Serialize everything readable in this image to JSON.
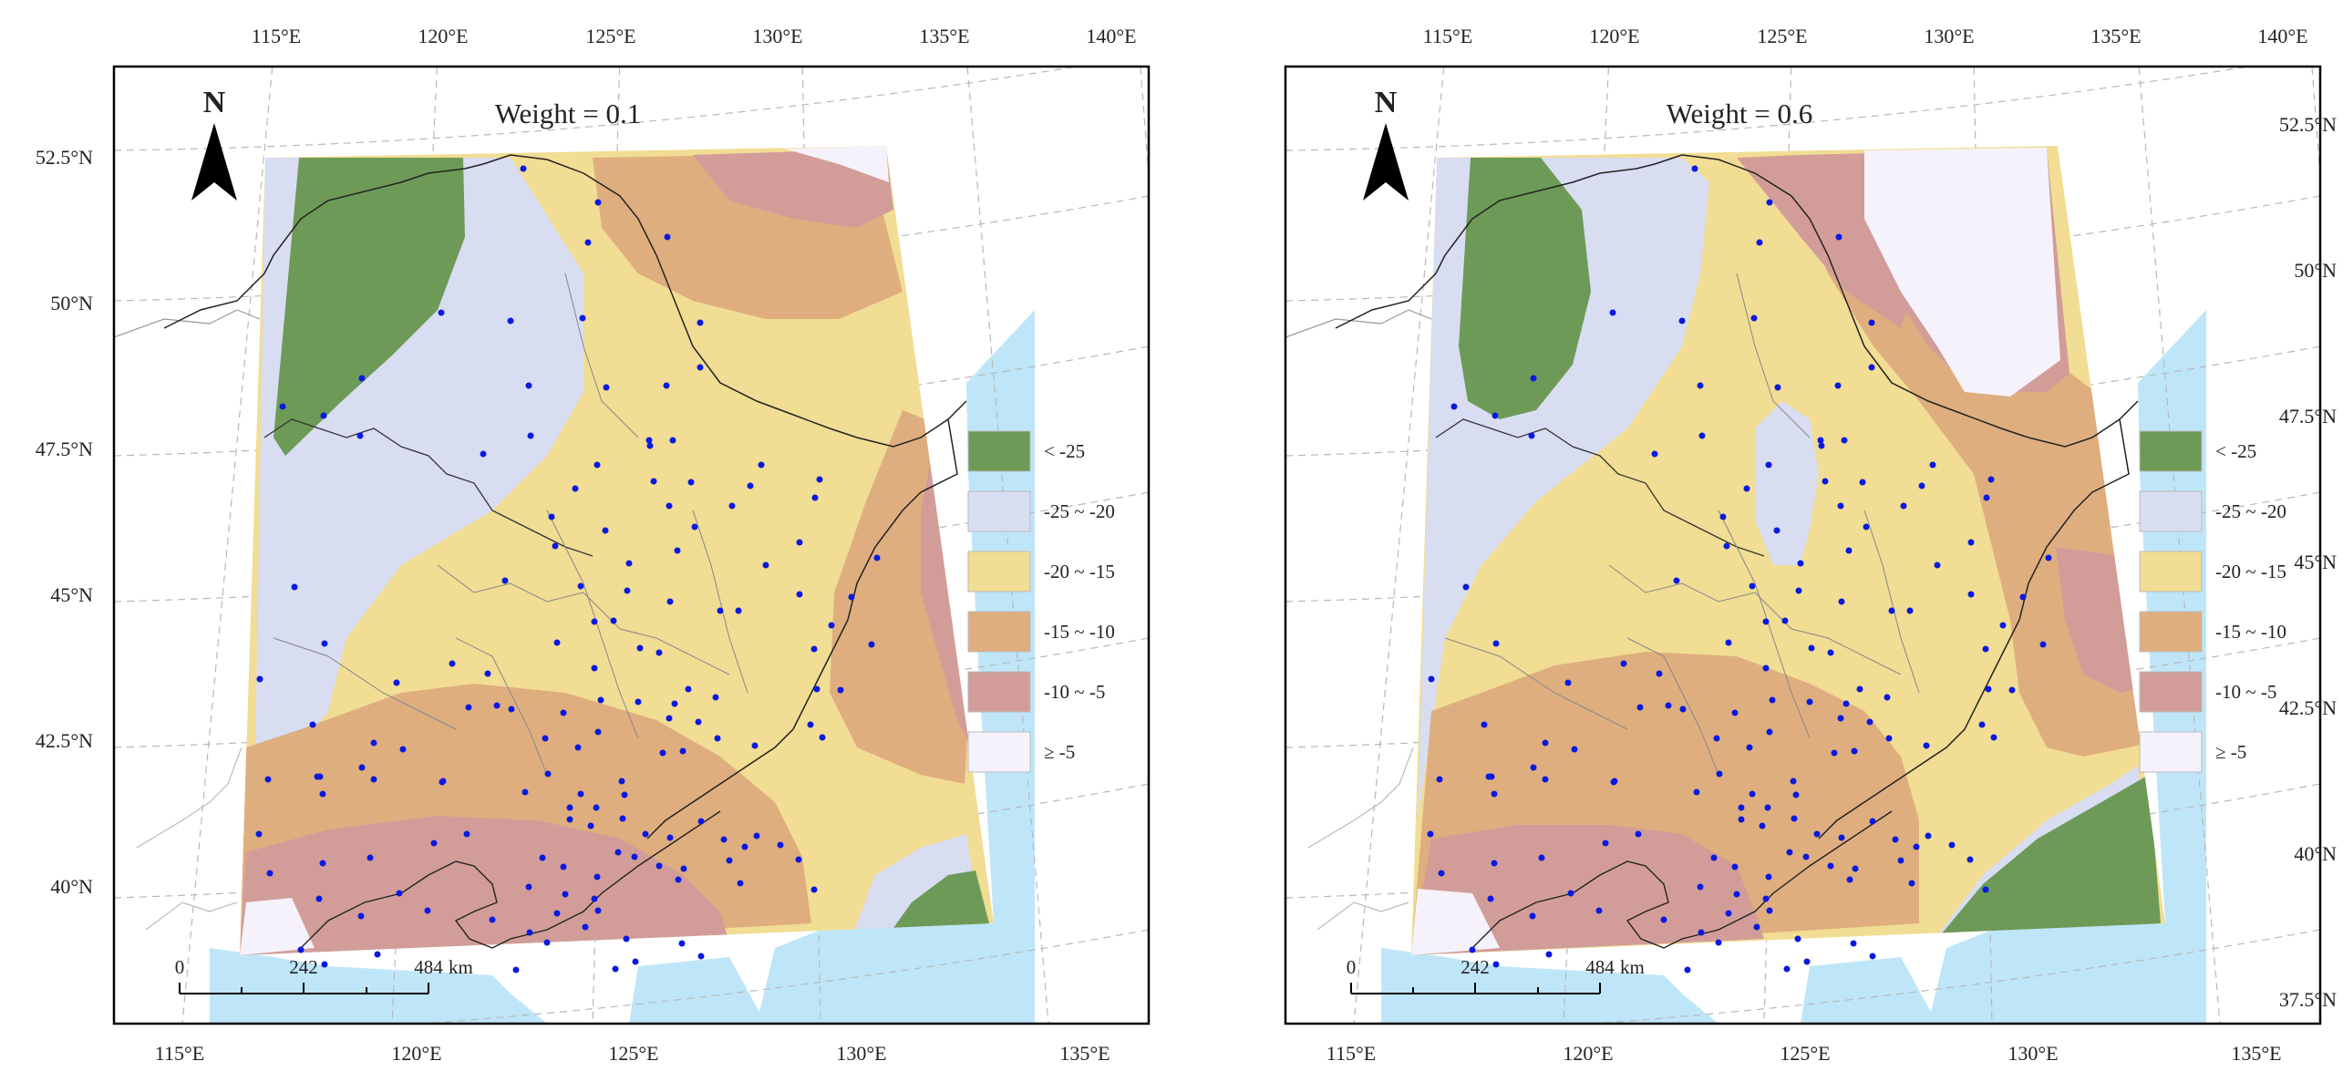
{
  "colors": {
    "cls1": "#6e9a58",
    "cls2": "#d8ddf2",
    "cls3": "#f1dd93",
    "cls4": "#dfae7f",
    "cls5": "#d29d99",
    "cls6": "#f5f2fb",
    "sea": "#bfe6f8",
    "station": "#0a1ae0"
  },
  "legend": [
    {
      "label": "< -25",
      "color": "#6e9a58"
    },
    {
      "label": "-25 ~ -20",
      "color": "#d8ddf2"
    },
    {
      "label": "-20 ~ -15",
      "color": "#f1dd93"
    },
    {
      "label": "-15 ~ -10",
      "color": "#dfae7f"
    },
    {
      "label": "-10 ~ -5",
      "color": "#d29d99"
    },
    {
      "label": "≥ -5",
      "color": "#f5f2fb"
    }
  ],
  "north_label": "N",
  "scalebar": {
    "labels": [
      "0",
      "242",
      "484"
    ],
    "unit": "km"
  },
  "longitude_labels": [
    "115°E",
    "120°E",
    "125°E",
    "130°E",
    "135°E",
    "140°E"
  ],
  "bottom_longitude_labels": [
    "115°E",
    "120°E",
    "125°E",
    "130°E",
    "135°E"
  ],
  "latitude_labels": [
    "52.5°N",
    "50°N",
    "47.5°N",
    "45°N",
    "42.5°N",
    "40°N",
    "37.5°N"
  ],
  "panels": [
    {
      "title": "Weight = 0.1"
    },
    {
      "title": "Weight = 0.6"
    }
  ]
}
